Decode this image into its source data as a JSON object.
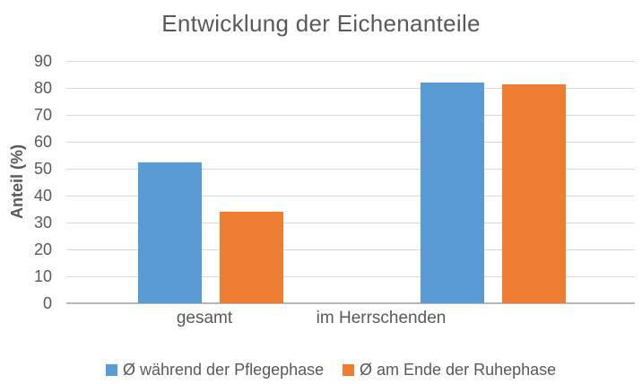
{
  "title": "Entwicklung der Eichenanteile",
  "chart_data": {
    "type": "bar",
    "title": "Entwicklung der Eichenanteile",
    "categories": [
      "gesamt",
      "im Herrschenden"
    ],
    "series": [
      {
        "name": "Ø während der Pflegephase",
        "color": "#5b9bd5",
        "values": [
          52.5,
          82
        ]
      },
      {
        "name": "Ø am Ende der Ruhephase",
        "color": "#ed7d31",
        "values": [
          34,
          81.5
        ]
      }
    ],
    "xlabel": "",
    "ylabel": "Anteil (%)",
    "ylim": [
      0,
      90
    ],
    "yticks": [
      0,
      10,
      20,
      30,
      40,
      50,
      60,
      70,
      80,
      90
    ],
    "grid": true,
    "legend_position": "bottom"
  },
  "colors": {
    "text": "#595959",
    "gridline": "#d9d9d9",
    "axis_line": "#b7b7b7",
    "background": "#ffffff",
    "series_blue": "#5b9bd5",
    "series_orange": "#ed7d31"
  }
}
